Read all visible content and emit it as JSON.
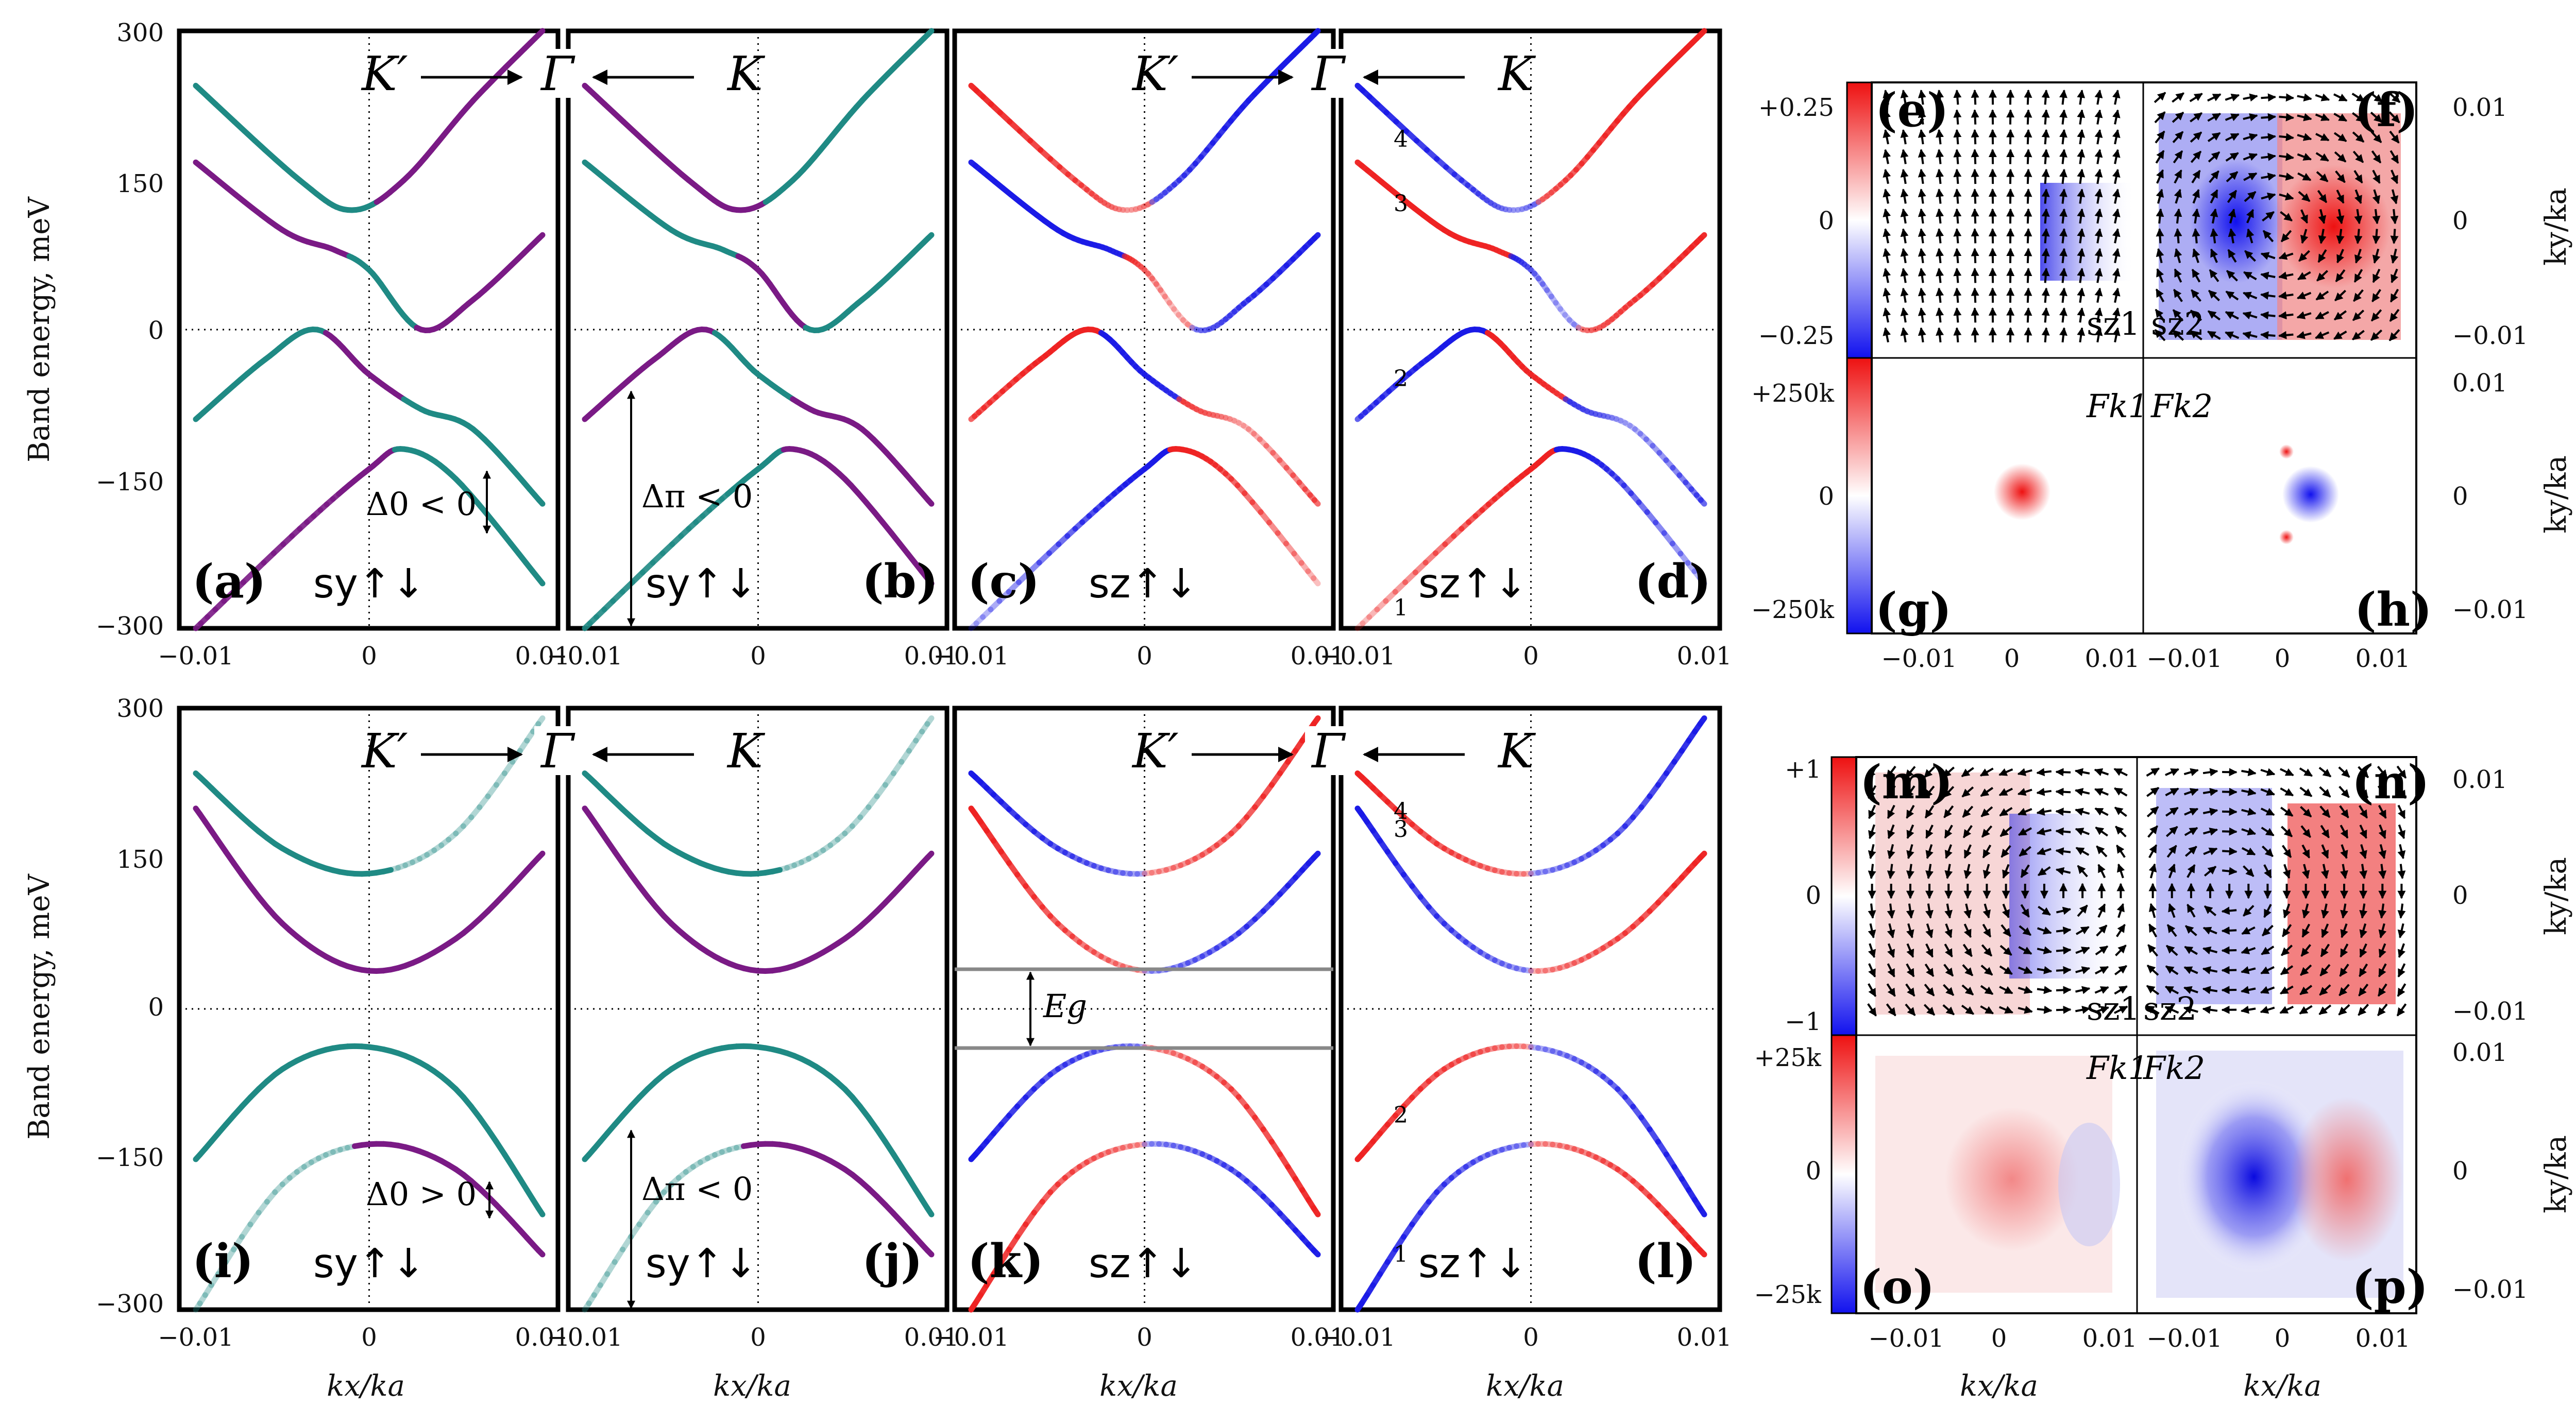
{
  "colors": {
    "sy_up": "#1f8a84",
    "sy_down": "#7a1a85",
    "sz_up": "#ee2222",
    "sz_down": "#1a1ae6",
    "frame": "#000000"
  },
  "header": {
    "kprime": "K′",
    "gamma": "Γ",
    "k": "K"
  },
  "axes": {
    "ylabel": "Band energy, meV",
    "xlabel": "kx/ka",
    "ylabel_right": "ky/ka",
    "yticks": [
      "300",
      "150",
      "0",
      "−150",
      "−300"
    ],
    "xticks": [
      "−0.01",
      "0",
      "0.01"
    ],
    "right_ticks": [
      "0.01",
      "0",
      "−0.01"
    ]
  },
  "annotations": {
    "delta0_neg": "Δ0 < 0",
    "deltapi_neg": "Δπ < 0",
    "delta0_pos": "Δ0 > 0",
    "eg": "Eg",
    "spin_y": "sy↑↓",
    "spin_z": "sz↑↓",
    "band1": "1",
    "band2": "2",
    "band3": "3",
    "band4": "4"
  },
  "panel_labels": {
    "a": "(a)",
    "b": "(b)",
    "c": "(c)",
    "d": "(d)",
    "e": "(e)",
    "f": "(f)",
    "g": "(g)",
    "h": "(h)",
    "i": "(i)",
    "j": "(j)",
    "k": "(k)",
    "l": "(l)",
    "m": "(m)",
    "n": "(n)",
    "o": "(o)",
    "p": "(p)"
  },
  "maps": {
    "sz1": "sz1",
    "sz2": "sz2",
    "F1": "Fk1",
    "F2": "Fk2",
    "cb_top_upper": "+0.25",
    "cb_top_mid": "0",
    "cb_top_lower": "−0.25",
    "cb_bot_upper": "+250k",
    "cb_bot_mid": "0",
    "cb_bot_lower": "−250k",
    "cb2_top_upper": "+1",
    "cb2_top_mid": "0",
    "cb2_top_lower": "−1",
    "cb2_bot_upper": "+25k",
    "cb2_bot_mid": "0",
    "cb2_bot_lower": "−25k"
  },
  "chart_data": [
    {
      "type": "line",
      "panel": "(a)",
      "xlabel": "",
      "ylabel": "Band energy, meV",
      "xlim": [
        -0.012,
        0.012
      ],
      "ylim": [
        -300,
        300
      ],
      "series": [
        {
          "x": [
            -0.01,
            -0.004,
            -0.001,
            0.002,
            0.006,
            0.01
          ],
          "values": [
            245,
            150,
            120,
            150,
            230,
            300
          ]
        },
        {
          "x": [
            -0.01,
            -0.005,
            -0.002,
            0.0,
            0.003,
            0.006,
            0.01
          ],
          "values": [
            168,
            100,
            80,
            60,
            0,
            30,
            95
          ]
        },
        {
          "x": [
            -0.01,
            -0.006,
            -0.003,
            0.0,
            0.003,
            0.006,
            0.01
          ],
          "values": [
            -90,
            -30,
            0,
            -45,
            -80,
            -100,
            -175
          ]
        },
        {
          "x": [
            -0.01,
            -0.004,
            0.0,
            0.002,
            0.005,
            0.01
          ],
          "values": [
            -300,
            -200,
            -140,
            -120,
            -150,
            -255
          ]
        }
      ]
    },
    {
      "type": "line",
      "panel": "(d)",
      "xlabel": "",
      "ylabel": "",
      "xlim": [
        -0.012,
        0.012
      ],
      "ylim": [
        -300,
        300
      ],
      "series": [
        {
          "name": "4",
          "x": [
            -0.01,
            -0.004,
            -0.001,
            0.002,
            0.006,
            0.01
          ],
          "values": [
            245,
            150,
            120,
            150,
            230,
            300
          ]
        },
        {
          "name": "3",
          "x": [
            -0.01,
            -0.005,
            -0.002,
            0.0,
            0.003,
            0.006,
            0.01
          ],
          "values": [
            168,
            100,
            80,
            60,
            0,
            30,
            95
          ]
        },
        {
          "name": "2",
          "x": [
            -0.01,
            -0.006,
            -0.003,
            0.0,
            0.003,
            0.006,
            0.01
          ],
          "values": [
            -90,
            -30,
            0,
            -45,
            -80,
            -100,
            -175
          ]
        },
        {
          "name": "1",
          "x": [
            -0.01,
            -0.004,
            0.0,
            0.002,
            0.005,
            0.01
          ],
          "values": [
            -300,
            -200,
            -140,
            -120,
            -150,
            -255
          ]
        }
      ]
    },
    {
      "type": "line",
      "panel": "(i)",
      "xlabel": "kx/ka",
      "ylabel": "Band energy, meV",
      "xlim": [
        -0.012,
        0.012
      ],
      "ylim": [
        -300,
        300
      ],
      "series": [
        {
          "x": [
            -0.01,
            -0.005,
            0.0,
            0.005,
            0.01
          ],
          "values": [
            235,
            160,
            135,
            175,
            290
          ]
        },
        {
          "x": [
            -0.01,
            -0.005,
            0.0,
            0.005,
            0.01
          ],
          "values": [
            200,
            85,
            38,
            70,
            155
          ]
        },
        {
          "x": [
            -0.01,
            -0.005,
            0.0,
            0.005,
            0.01
          ],
          "values": [
            -150,
            -60,
            -38,
            -80,
            -205
          ]
        },
        {
          "x": [
            -0.01,
            -0.005,
            0.0,
            0.005,
            0.01
          ],
          "values": [
            -300,
            -175,
            -135,
            -160,
            -245
          ]
        }
      ]
    },
    {
      "type": "line",
      "panel": "(k)",
      "xlabel": "kx/ka",
      "ylabel": "",
      "xlim": [
        -0.012,
        0.012
      ],
      "ylim": [
        -300,
        300
      ],
      "series": [
        {
          "x": [
            -0.01,
            -0.005,
            0.0,
            0.005,
            0.01
          ],
          "values": [
            235,
            160,
            135,
            175,
            290
          ]
        },
        {
          "x": [
            -0.01,
            -0.005,
            0.0,
            0.005,
            0.01
          ],
          "values": [
            200,
            85,
            38,
            70,
            155
          ]
        },
        {
          "x": [
            -0.01,
            -0.005,
            0.0,
            0.005,
            0.01
          ],
          "values": [
            -150,
            -60,
            -38,
            -80,
            -205
          ]
        },
        {
          "x": [
            -0.01,
            -0.005,
            0.0,
            0.005,
            0.01
          ],
          "values": [
            -300,
            -175,
            -135,
            -160,
            -245
          ]
        }
      ]
    }
  ]
}
